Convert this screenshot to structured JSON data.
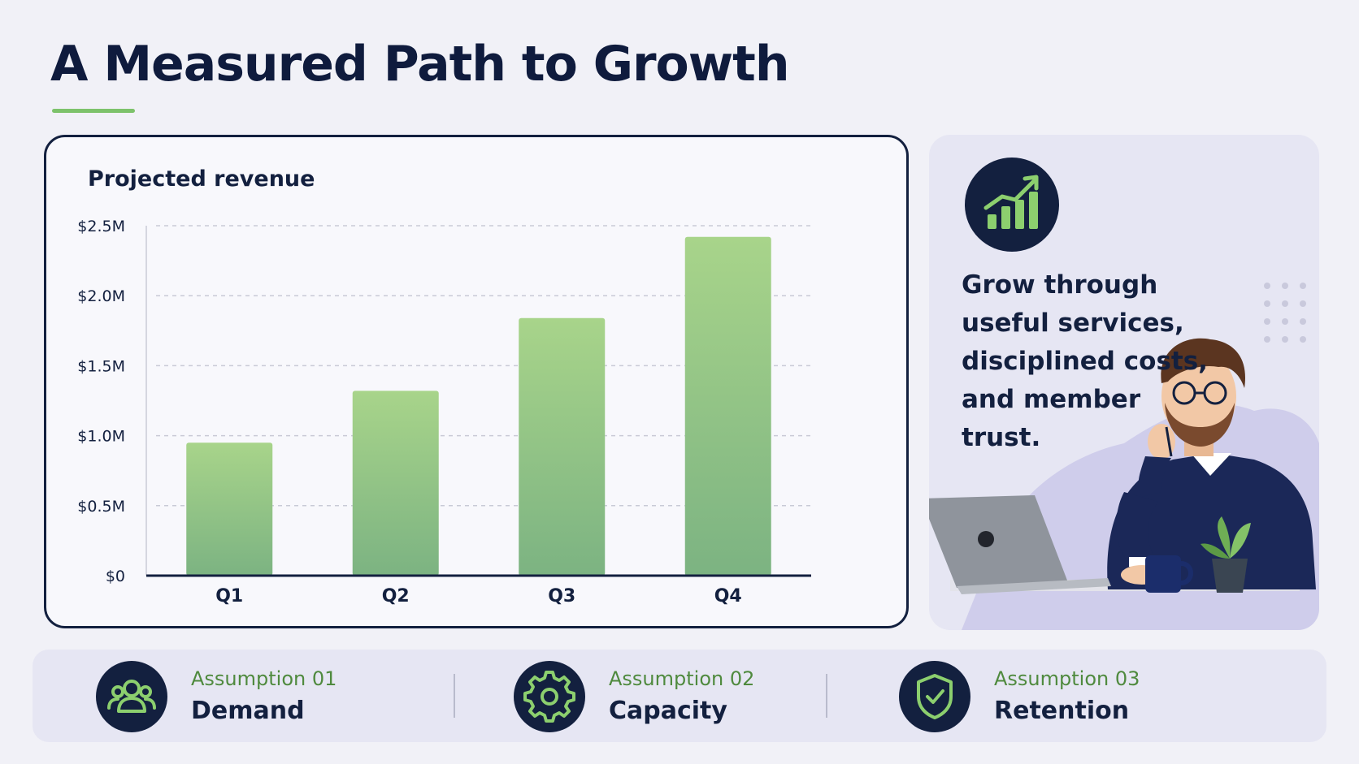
{
  "page": {
    "title": "A Measured Path to Growth"
  },
  "chart_data": {
    "type": "bar",
    "title": "Projected revenue",
    "categories": [
      "Q1",
      "Q2",
      "Q3",
      "Q4"
    ],
    "values": [
      0.95,
      1.32,
      1.84,
      2.42
    ],
    "unit": "$M",
    "ylim": [
      0,
      2.5
    ],
    "yticks": [
      0,
      0.5,
      1.0,
      1.5,
      2.0,
      2.5
    ],
    "ytick_labels": [
      "$0",
      "$0.5M",
      "$1.0M",
      "$1.5M",
      "$2.0M",
      "$2.5M"
    ],
    "grid": true,
    "bar_color_top": "#a8d48a",
    "bar_color_bottom": "#7cb382"
  },
  "side_panel": {
    "badge_icon": "growth-chart-icon",
    "tagline_lines": [
      "Grow through",
      "useful services,",
      "disciplined costs,",
      "and member trust."
    ]
  },
  "assumptions": [
    {
      "label": "Assumption 01",
      "name": "Demand",
      "icon": "people-icon"
    },
    {
      "label": "Assumption 02",
      "name": "Capacity",
      "icon": "gear-icon"
    },
    {
      "label": "Assumption 03",
      "name": "Retention",
      "icon": "shield-check-icon"
    }
  ],
  "colors": {
    "navy": "#13203f",
    "accent_green": "#7dc26b",
    "label_green": "#4f8a3e",
    "panel_bg": "#e6e6f3"
  }
}
